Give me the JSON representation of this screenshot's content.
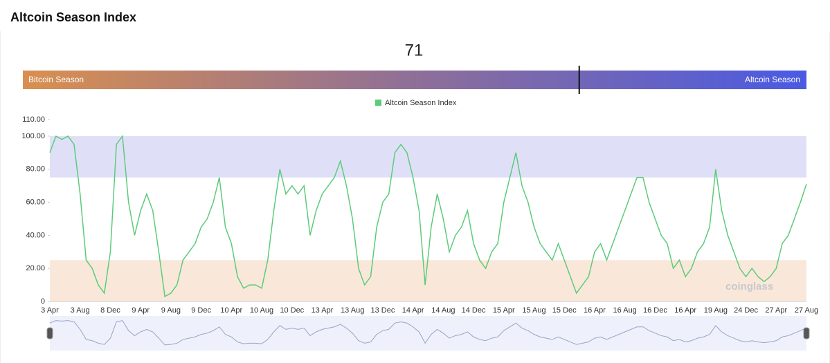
{
  "header": {
    "title": "Altcoin Season Index"
  },
  "gauge": {
    "value": 71,
    "min": 0,
    "max": 100,
    "left_label": "Bitcoin Season",
    "right_label": "Altcoin Season"
  },
  "chart_data": {
    "type": "line",
    "categories": [
      "3 Apr",
      null,
      null,
      null,
      null,
      "3 Aug",
      null,
      null,
      null,
      null,
      "8 Dec",
      null,
      null,
      null,
      null,
      "9 Apr",
      null,
      null,
      null,
      null,
      "9 Aug",
      null,
      null,
      null,
      null,
      "9 Dec",
      null,
      null,
      null,
      null,
      "10 Apr",
      null,
      null,
      null,
      null,
      "10 Aug",
      null,
      null,
      null,
      null,
      "10 Dec",
      null,
      null,
      null,
      null,
      "13 Apr",
      null,
      null,
      null,
      null,
      "13 Aug",
      null,
      null,
      null,
      null,
      "13 Dec",
      null,
      null,
      null,
      null,
      "14 Apr",
      null,
      null,
      null,
      null,
      "14 Aug",
      null,
      null,
      null,
      null,
      "14 Dec",
      null,
      null,
      null,
      null,
      "15 Apr",
      null,
      null,
      null,
      null,
      "15 Aug",
      null,
      null,
      null,
      null,
      "15 Dec",
      null,
      null,
      null,
      null,
      "16 Apr",
      null,
      null,
      null,
      null,
      "16 Aug",
      null,
      null,
      null,
      null,
      "16 Dec",
      null,
      null,
      null,
      null,
      "16 Apr",
      null,
      null,
      null,
      null,
      "19 Aug",
      null,
      null,
      null,
      null,
      "24 Dec",
      null,
      null,
      null,
      null,
      "27 Apr",
      null,
      null,
      null,
      null,
      "27 Aug"
    ],
    "series": [
      {
        "name": "Altcoin Season Index",
        "color": "#5ccb7a",
        "values": [
          90,
          100,
          98,
          100,
          95,
          65,
          25,
          20,
          10,
          5,
          30,
          95,
          100,
          60,
          40,
          55,
          65,
          55,
          30,
          3,
          5,
          10,
          25,
          30,
          35,
          45,
          50,
          60,
          75,
          45,
          35,
          15,
          8,
          10,
          10,
          8,
          25,
          55,
          80,
          65,
          70,
          65,
          70,
          40,
          55,
          65,
          70,
          75,
          85,
          70,
          50,
          20,
          10,
          15,
          45,
          60,
          65,
          90,
          95,
          90,
          75,
          55,
          10,
          45,
          65,
          50,
          30,
          40,
          45,
          55,
          35,
          25,
          20,
          30,
          35,
          60,
          75,
          90,
          70,
          60,
          45,
          35,
          30,
          25,
          35,
          25,
          15,
          5,
          10,
          15,
          30,
          35,
          25,
          35,
          45,
          55,
          65,
          75,
          75,
          60,
          50,
          40,
          35,
          20,
          25,
          15,
          20,
          30,
          35,
          45,
          80,
          55,
          40,
          30,
          20,
          15,
          20,
          15,
          12,
          15,
          20,
          35,
          40,
          50,
          60,
          71
        ]
      }
    ],
    "ylim": [
      0,
      110
    ],
    "yticks": [
      0,
      {
        "value": 20,
        "label": "20.00"
      },
      {
        "value": 40,
        "label": "40.00"
      },
      {
        "value": 60,
        "label": "60.00"
      },
      {
        "value": 80,
        "label": "80.00"
      },
      {
        "value": 100,
        "label": "100.00"
      },
      {
        "value": 110,
        "label": "110.00"
      }
    ],
    "bands": [
      {
        "from": 75,
        "to": 100,
        "color": "#dfe0f7"
      },
      {
        "from": 0,
        "to": 25,
        "color": "#f9e8da"
      }
    ],
    "watermark": "coinglass"
  }
}
